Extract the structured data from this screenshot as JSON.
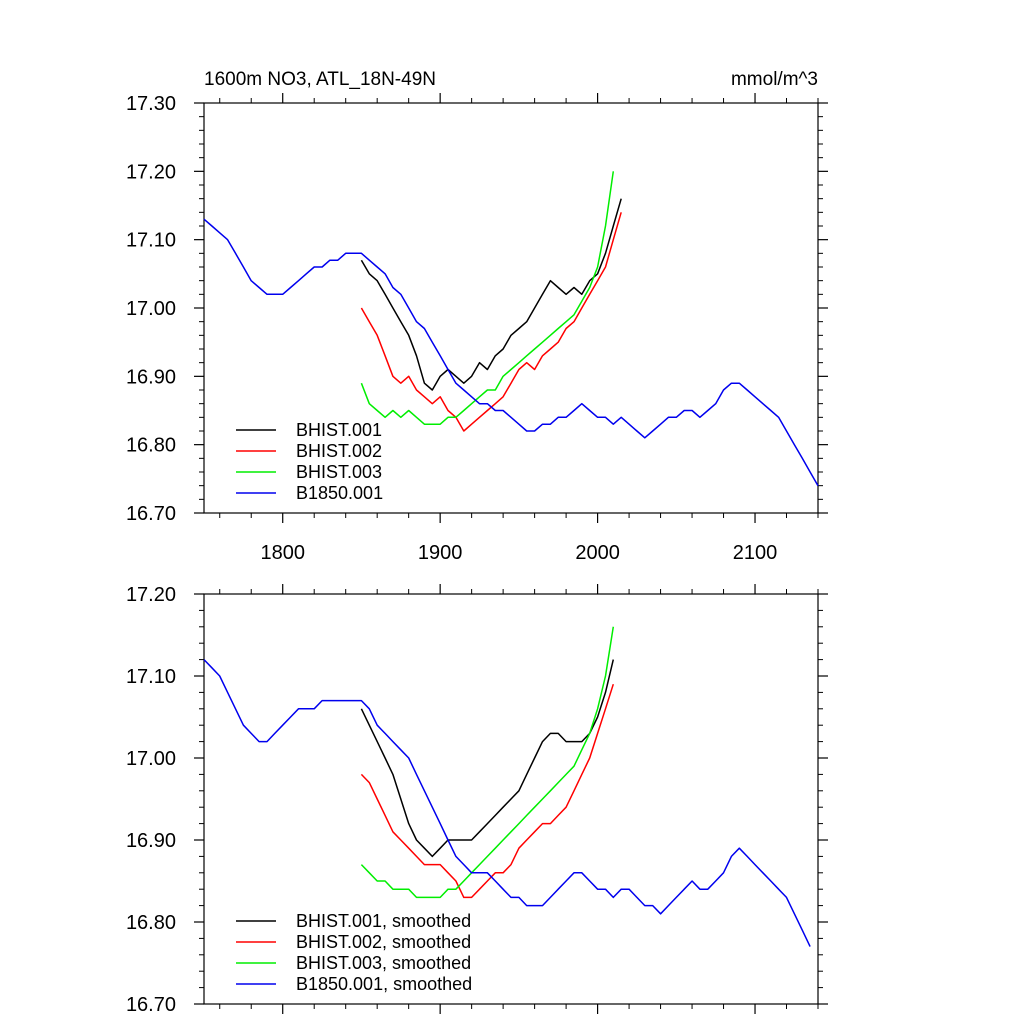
{
  "chart_data": [
    {
      "type": "line",
      "title": "1600m NO3, ATL_18N-49N",
      "units": "mmol/m^3",
      "xlim": [
        1750,
        2140
      ],
      "ylim": [
        16.7,
        17.3
      ],
      "xticks": [
        "1800",
        "1900",
        "2000",
        "2100"
      ],
      "yticks": [
        "16.70",
        "16.80",
        "16.90",
        "17.00",
        "17.10",
        "17.20",
        "17.30"
      ],
      "legend": [
        "BHIST.001",
        "BHIST.002",
        "BHIST.003",
        "B1850.001"
      ],
      "legend_position": "bottom-left",
      "series": [
        {
          "name": "BHIST.001",
          "color": "#000000",
          "x": [
            1850,
            1855,
            1860,
            1865,
            1870,
            1875,
            1880,
            1885,
            1890,
            1895,
            1900,
            1905,
            1910,
            1915,
            1920,
            1925,
            1930,
            1935,
            1940,
            1945,
            1950,
            1955,
            1960,
            1965,
            1970,
            1975,
            1980,
            1985,
            1990,
            1995,
            2000,
            2005,
            2010,
            2015
          ],
          "values": [
            17.07,
            17.05,
            17.04,
            17.02,
            17.0,
            16.98,
            16.96,
            16.93,
            16.89,
            16.88,
            16.9,
            16.91,
            16.9,
            16.89,
            16.9,
            16.92,
            16.91,
            16.93,
            16.94,
            16.96,
            16.97,
            16.98,
            17.0,
            17.02,
            17.04,
            17.03,
            17.02,
            17.03,
            17.02,
            17.04,
            17.05,
            17.08,
            17.12,
            17.16
          ]
        },
        {
          "name": "BHIST.002",
          "color": "#ff0000",
          "x": [
            1850,
            1855,
            1860,
            1865,
            1870,
            1875,
            1880,
            1885,
            1890,
            1895,
            1900,
            1905,
            1910,
            1915,
            1920,
            1925,
            1930,
            1935,
            1940,
            1945,
            1950,
            1955,
            1960,
            1965,
            1970,
            1975,
            1980,
            1985,
            1990,
            1995,
            2000,
            2005,
            2010,
            2015
          ],
          "values": [
            17.0,
            16.98,
            16.96,
            16.93,
            16.9,
            16.89,
            16.9,
            16.88,
            16.87,
            16.86,
            16.87,
            16.85,
            16.84,
            16.82,
            16.83,
            16.84,
            16.85,
            16.86,
            16.87,
            16.89,
            16.91,
            16.92,
            16.91,
            16.93,
            16.94,
            16.95,
            16.97,
            16.98,
            17.0,
            17.02,
            17.04,
            17.06,
            17.1,
            17.14
          ]
        },
        {
          "name": "BHIST.003",
          "color": "#00ee00",
          "x": [
            1850,
            1855,
            1860,
            1865,
            1870,
            1875,
            1880,
            1885,
            1890,
            1895,
            1900,
            1905,
            1910,
            1915,
            1920,
            1925,
            1930,
            1935,
            1940,
            1945,
            1950,
            1955,
            1960,
            1965,
            1970,
            1975,
            1980,
            1985,
            1990,
            1995,
            2000,
            2005,
            2010
          ],
          "values": [
            16.89,
            16.86,
            16.85,
            16.84,
            16.85,
            16.84,
            16.85,
            16.84,
            16.83,
            16.83,
            16.83,
            16.84,
            16.84,
            16.85,
            16.86,
            16.87,
            16.88,
            16.88,
            16.9,
            16.91,
            16.92,
            16.93,
            16.94,
            16.95,
            16.96,
            16.97,
            16.98,
            16.99,
            17.01,
            17.03,
            17.06,
            17.12,
            17.2
          ]
        },
        {
          "name": "B1850.001",
          "color": "#0000ee",
          "x": [
            1750,
            1755,
            1760,
            1765,
            1770,
            1775,
            1780,
            1785,
            1790,
            1795,
            1800,
            1805,
            1810,
            1815,
            1820,
            1825,
            1830,
            1835,
            1840,
            1845,
            1850,
            1855,
            1860,
            1865,
            1870,
            1875,
            1880,
            1885,
            1890,
            1895,
            1900,
            1905,
            1910,
            1915,
            1920,
            1925,
            1930,
            1935,
            1940,
            1945,
            1950,
            1955,
            1960,
            1965,
            1970,
            1975,
            1980,
            1985,
            1990,
            1995,
            2000,
            2005,
            2010,
            2015,
            2020,
            2025,
            2030,
            2035,
            2040,
            2045,
            2050,
            2055,
            2060,
            2065,
            2070,
            2075,
            2080,
            2085,
            2090,
            2095,
            2100,
            2105,
            2110,
            2115,
            2120,
            2125,
            2130,
            2135,
            2140
          ],
          "values": [
            17.13,
            17.12,
            17.11,
            17.1,
            17.08,
            17.06,
            17.04,
            17.03,
            17.02,
            17.02,
            17.02,
            17.03,
            17.04,
            17.05,
            17.06,
            17.06,
            17.07,
            17.07,
            17.08,
            17.08,
            17.08,
            17.07,
            17.06,
            17.05,
            17.03,
            17.02,
            17.0,
            16.98,
            16.97,
            16.95,
            16.93,
            16.91,
            16.89,
            16.88,
            16.87,
            16.86,
            16.86,
            16.85,
            16.85,
            16.84,
            16.83,
            16.82,
            16.82,
            16.83,
            16.83,
            16.84,
            16.84,
            16.85,
            16.86,
            16.85,
            16.84,
            16.84,
            16.83,
            16.84,
            16.83,
            16.82,
            16.81,
            16.82,
            16.83,
            16.84,
            16.84,
            16.85,
            16.85,
            16.84,
            16.85,
            16.86,
            16.88,
            16.89,
            16.89,
            16.88,
            16.87,
            16.86,
            16.85,
            16.84,
            16.82,
            16.8,
            16.78,
            16.76,
            16.74
          ]
        }
      ]
    },
    {
      "type": "line",
      "title": "",
      "xlim": [
        1750,
        2140
      ],
      "ylim": [
        16.7,
        17.2
      ],
      "xticks": [],
      "yticks": [
        "16.70",
        "16.80",
        "16.90",
        "17.00",
        "17.10",
        "17.20"
      ],
      "legend": [
        "BHIST.001, smoothed",
        "BHIST.002, smoothed",
        "BHIST.003, smoothed",
        "B1850.001, smoothed"
      ],
      "legend_position": "bottom-left",
      "series": [
        {
          "name": "BHIST.001, smoothed",
          "color": "#000000",
          "x": [
            1850,
            1855,
            1860,
            1865,
            1870,
            1875,
            1880,
            1885,
            1890,
            1895,
            1900,
            1905,
            1910,
            1915,
            1920,
            1925,
            1930,
            1935,
            1940,
            1945,
            1950,
            1955,
            1960,
            1965,
            1970,
            1975,
            1980,
            1985,
            1990,
            1995,
            2000,
            2005,
            2010
          ],
          "values": [
            17.06,
            17.04,
            17.02,
            17.0,
            16.98,
            16.95,
            16.92,
            16.9,
            16.89,
            16.88,
            16.89,
            16.9,
            16.9,
            16.9,
            16.9,
            16.91,
            16.92,
            16.93,
            16.94,
            16.95,
            16.96,
            16.98,
            17.0,
            17.02,
            17.03,
            17.03,
            17.02,
            17.02,
            17.02,
            17.03,
            17.05,
            17.08,
            17.12
          ]
        },
        {
          "name": "BHIST.002, smoothed",
          "color": "#ff0000",
          "x": [
            1850,
            1855,
            1860,
            1865,
            1870,
            1875,
            1880,
            1885,
            1890,
            1895,
            1900,
            1905,
            1910,
            1915,
            1920,
            1925,
            1930,
            1935,
            1940,
            1945,
            1950,
            1955,
            1960,
            1965,
            1970,
            1975,
            1980,
            1985,
            1990,
            1995,
            2000,
            2005,
            2010
          ],
          "values": [
            16.98,
            16.97,
            16.95,
            16.93,
            16.91,
            16.9,
            16.89,
            16.88,
            16.87,
            16.87,
            16.87,
            16.86,
            16.85,
            16.83,
            16.83,
            16.84,
            16.85,
            16.86,
            16.86,
            16.87,
            16.89,
            16.9,
            16.91,
            16.92,
            16.92,
            16.93,
            16.94,
            16.96,
            16.98,
            17.0,
            17.03,
            17.06,
            17.09
          ]
        },
        {
          "name": "BHIST.003, smoothed",
          "color": "#00ee00",
          "x": [
            1850,
            1855,
            1860,
            1865,
            1870,
            1875,
            1880,
            1885,
            1890,
            1895,
            1900,
            1905,
            1910,
            1915,
            1920,
            1925,
            1930,
            1935,
            1940,
            1945,
            1950,
            1955,
            1960,
            1965,
            1970,
            1975,
            1980,
            1985,
            1990,
            1995,
            2000,
            2005,
            2010
          ],
          "values": [
            16.87,
            16.86,
            16.85,
            16.85,
            16.84,
            16.84,
            16.84,
            16.83,
            16.83,
            16.83,
            16.83,
            16.84,
            16.84,
            16.85,
            16.86,
            16.87,
            16.88,
            16.89,
            16.9,
            16.91,
            16.92,
            16.93,
            16.94,
            16.95,
            16.96,
            16.97,
            16.98,
            16.99,
            17.01,
            17.03,
            17.06,
            17.1,
            17.16
          ]
        },
        {
          "name": "B1850.001, smoothed",
          "color": "#0000ee",
          "x": [
            1750,
            1755,
            1760,
            1765,
            1770,
            1775,
            1780,
            1785,
            1790,
            1795,
            1800,
            1805,
            1810,
            1815,
            1820,
            1825,
            1830,
            1835,
            1840,
            1845,
            1850,
            1855,
            1860,
            1865,
            1870,
            1875,
            1880,
            1885,
            1890,
            1895,
            1900,
            1905,
            1910,
            1915,
            1920,
            1925,
            1930,
            1935,
            1940,
            1945,
            1950,
            1955,
            1960,
            1965,
            1970,
            1975,
            1980,
            1985,
            1990,
            1995,
            2000,
            2005,
            2010,
            2015,
            2020,
            2025,
            2030,
            2035,
            2040,
            2045,
            2050,
            2055,
            2060,
            2065,
            2070,
            2075,
            2080,
            2085,
            2090,
            2095,
            2100,
            2105,
            2110,
            2115,
            2120,
            2125,
            2130,
            2135
          ],
          "values": [
            17.12,
            17.11,
            17.1,
            17.08,
            17.06,
            17.04,
            17.03,
            17.02,
            17.02,
            17.03,
            17.04,
            17.05,
            17.06,
            17.06,
            17.06,
            17.07,
            17.07,
            17.07,
            17.07,
            17.07,
            17.07,
            17.06,
            17.04,
            17.03,
            17.02,
            17.01,
            17.0,
            16.98,
            16.96,
            16.94,
            16.92,
            16.9,
            16.88,
            16.87,
            16.86,
            16.86,
            16.86,
            16.85,
            16.84,
            16.83,
            16.83,
            16.82,
            16.82,
            16.82,
            16.83,
            16.84,
            16.85,
            16.86,
            16.86,
            16.85,
            16.84,
            16.84,
            16.83,
            16.84,
            16.84,
            16.83,
            16.82,
            16.82,
            16.81,
            16.82,
            16.83,
            16.84,
            16.85,
            16.84,
            16.84,
            16.85,
            16.86,
            16.88,
            16.89,
            16.88,
            16.87,
            16.86,
            16.85,
            16.84,
            16.83,
            16.81,
            16.79,
            16.77
          ]
        }
      ]
    }
  ]
}
